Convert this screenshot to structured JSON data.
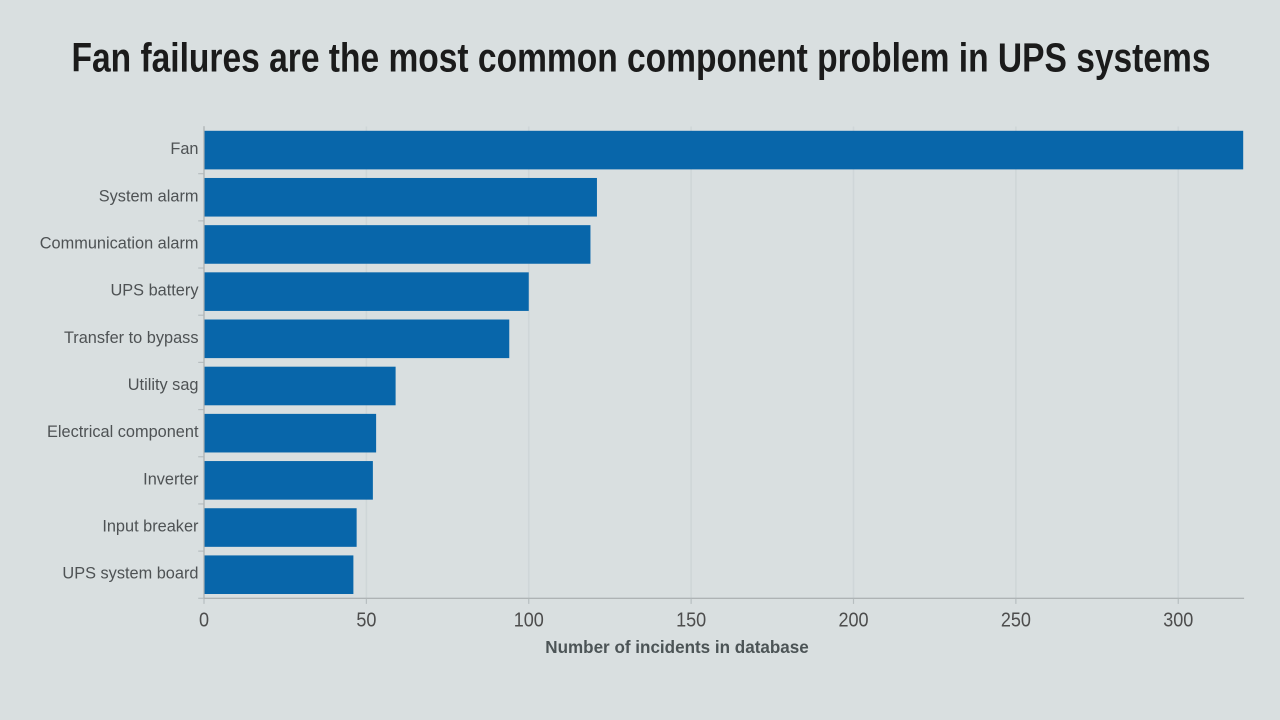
{
  "chart_data": {
    "type": "bar",
    "orientation": "horizontal",
    "title": "Fan failures are the most common component problem in UPS systems",
    "categories": [
      "Fan",
      "System alarm",
      "Communication alarm",
      "UPS battery",
      "Transfer to bypass",
      "Utility sag",
      "Electrical component",
      "Inverter",
      "Input breaker",
      "UPS system board"
    ],
    "values": [
      320,
      121,
      119,
      100,
      94,
      59,
      53,
      52,
      47,
      46
    ],
    "xlabel": "Number of incidents in database",
    "ylabel": "",
    "xticks": [
      0,
      50,
      100,
      150,
      200,
      250,
      300
    ],
    "xlim": [
      0,
      320
    ],
    "grid": "vertical",
    "legend": "none",
    "colors": {
      "background": "#d9dfe0",
      "bar": "#0866aa",
      "title_text": "#1b1b1b",
      "category_label_text": "#4e5254",
      "tick_label_text": "#4d4d4d",
      "axis_title_text": "#4c5456",
      "gridline": "#cfd6d8",
      "axis_line": "#a9aeb0",
      "tick_mark": "#b7bec0"
    }
  }
}
